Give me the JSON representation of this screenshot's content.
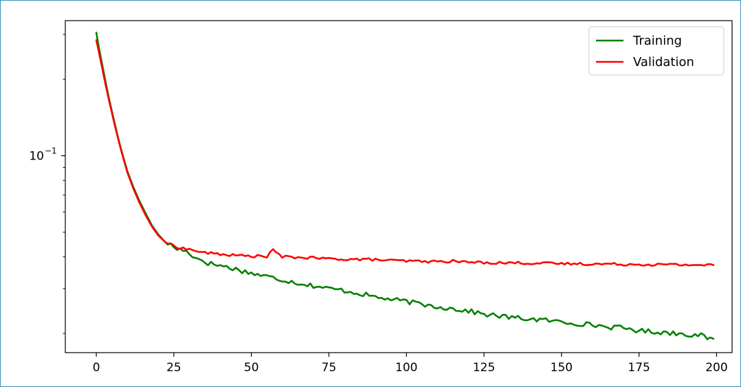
{
  "chart_data": {
    "type": "line",
    "title": "",
    "xlabel": "",
    "ylabel": "",
    "xlim": [
      -10,
      205
    ],
    "ylim": [
      0.0168,
      0.34
    ],
    "yscale": "log",
    "x_ticks": [
      {
        "value": 0,
        "label": "0"
      },
      {
        "value": 25,
        "label": "25"
      },
      {
        "value": 50,
        "label": "50"
      },
      {
        "value": 75,
        "label": "75"
      },
      {
        "value": 100,
        "label": "100"
      },
      {
        "value": 125,
        "label": "125"
      },
      {
        "value": 150,
        "label": "150"
      },
      {
        "value": 175,
        "label": "175"
      },
      {
        "value": 200,
        "label": "200"
      }
    ],
    "y_ticks": [
      {
        "value": 0.1,
        "label_base": "10",
        "label_exp": "−1"
      }
    ],
    "y_minor_ticks": [
      0.02,
      0.03,
      0.04,
      0.05,
      0.06,
      0.07,
      0.08,
      0.09,
      0.2,
      0.3
    ],
    "grid": false,
    "legend_position": "top-right",
    "series": [
      {
        "name": "Training",
        "color": "#008000",
        "points": [
          [
            0,
            0.305
          ],
          [
            1,
            0.26
          ],
          [
            2,
            0.225
          ],
          [
            3,
            0.195
          ],
          [
            4,
            0.17
          ],
          [
            5,
            0.15
          ],
          [
            6,
            0.133
          ],
          [
            7,
            0.118
          ],
          [
            8,
            0.106
          ],
          [
            9,
            0.096
          ],
          [
            10,
            0.087
          ],
          [
            12,
            0.075
          ],
          [
            14,
            0.066
          ],
          [
            16,
            0.059
          ],
          [
            18,
            0.053
          ],
          [
            20,
            0.049
          ],
          [
            22,
            0.046
          ],
          [
            24,
            0.0445
          ],
          [
            26,
            0.043
          ],
          [
            28,
            0.0425
          ],
          [
            30,
            0.0415
          ],
          [
            32,
            0.0395
          ],
          [
            34,
            0.039
          ],
          [
            36,
            0.0378
          ],
          [
            40,
            0.037
          ],
          [
            45,
            0.0358
          ],
          [
            50,
            0.0345
          ],
          [
            55,
            0.0335
          ],
          [
            60,
            0.0325
          ],
          [
            65,
            0.0316
          ],
          [
            70,
            0.0308
          ],
          [
            75,
            0.03
          ],
          [
            80,
            0.0295
          ],
          [
            85,
            0.0287
          ],
          [
            90,
            0.0278
          ],
          [
            95,
            0.0272
          ],
          [
            100,
            0.0267
          ],
          [
            105,
            0.026
          ],
          [
            110,
            0.0255
          ],
          [
            115,
            0.025
          ],
          [
            120,
            0.0245
          ],
          [
            125,
            0.0238
          ],
          [
            130,
            0.0234
          ],
          [
            135,
            0.023
          ],
          [
            140,
            0.0228
          ],
          [
            145,
            0.0225
          ],
          [
            150,
            0.0222
          ],
          [
            155,
            0.0219
          ],
          [
            160,
            0.0216
          ],
          [
            165,
            0.0212
          ],
          [
            170,
            0.021
          ],
          [
            175,
            0.0205
          ],
          [
            180,
            0.0203
          ],
          [
            185,
            0.0201
          ],
          [
            190,
            0.0199
          ],
          [
            195,
            0.0196
          ],
          [
            199,
            0.0188
          ]
        ]
      },
      {
        "name": "Validation",
        "color": "#ff0000",
        "points": [
          [
            0,
            0.285
          ],
          [
            1,
            0.25
          ],
          [
            2,
            0.218
          ],
          [
            3,
            0.19
          ],
          [
            4,
            0.167
          ],
          [
            5,
            0.148
          ],
          [
            6,
            0.131
          ],
          [
            7,
            0.117
          ],
          [
            8,
            0.105
          ],
          [
            9,
            0.095
          ],
          [
            10,
            0.086
          ],
          [
            12,
            0.074
          ],
          [
            14,
            0.065
          ],
          [
            16,
            0.058
          ],
          [
            18,
            0.0525
          ],
          [
            20,
            0.0485
          ],
          [
            22,
            0.046
          ],
          [
            24,
            0.0447
          ],
          [
            26,
            0.0438
          ],
          [
            28,
            0.0432
          ],
          [
            30,
            0.0428
          ],
          [
            35,
            0.0415
          ],
          [
            40,
            0.041
          ],
          [
            45,
            0.0405
          ],
          [
            50,
            0.0403
          ],
          [
            55,
            0.0402
          ],
          [
            57,
            0.0425
          ],
          [
            60,
            0.04
          ],
          [
            65,
            0.0398
          ],
          [
            70,
            0.0396
          ],
          [
            75,
            0.0393
          ],
          [
            80,
            0.0392
          ],
          [
            85,
            0.0391
          ],
          [
            90,
            0.039
          ],
          [
            95,
            0.0387
          ],
          [
            100,
            0.0385
          ],
          [
            105,
            0.0384
          ],
          [
            110,
            0.0383
          ],
          [
            115,
            0.0385
          ],
          [
            120,
            0.0381
          ],
          [
            125,
            0.038
          ],
          [
            130,
            0.0379
          ],
          [
            135,
            0.0379
          ],
          [
            140,
            0.0378
          ],
          [
            145,
            0.0377
          ],
          [
            150,
            0.0376
          ],
          [
            155,
            0.0376
          ],
          [
            160,
            0.0375
          ],
          [
            165,
            0.0375
          ],
          [
            170,
            0.0374
          ],
          [
            175,
            0.0374
          ],
          [
            180,
            0.0373
          ],
          [
            185,
            0.0373
          ],
          [
            190,
            0.0372
          ],
          [
            195,
            0.0372
          ],
          [
            199,
            0.0371
          ]
        ]
      }
    ]
  }
}
